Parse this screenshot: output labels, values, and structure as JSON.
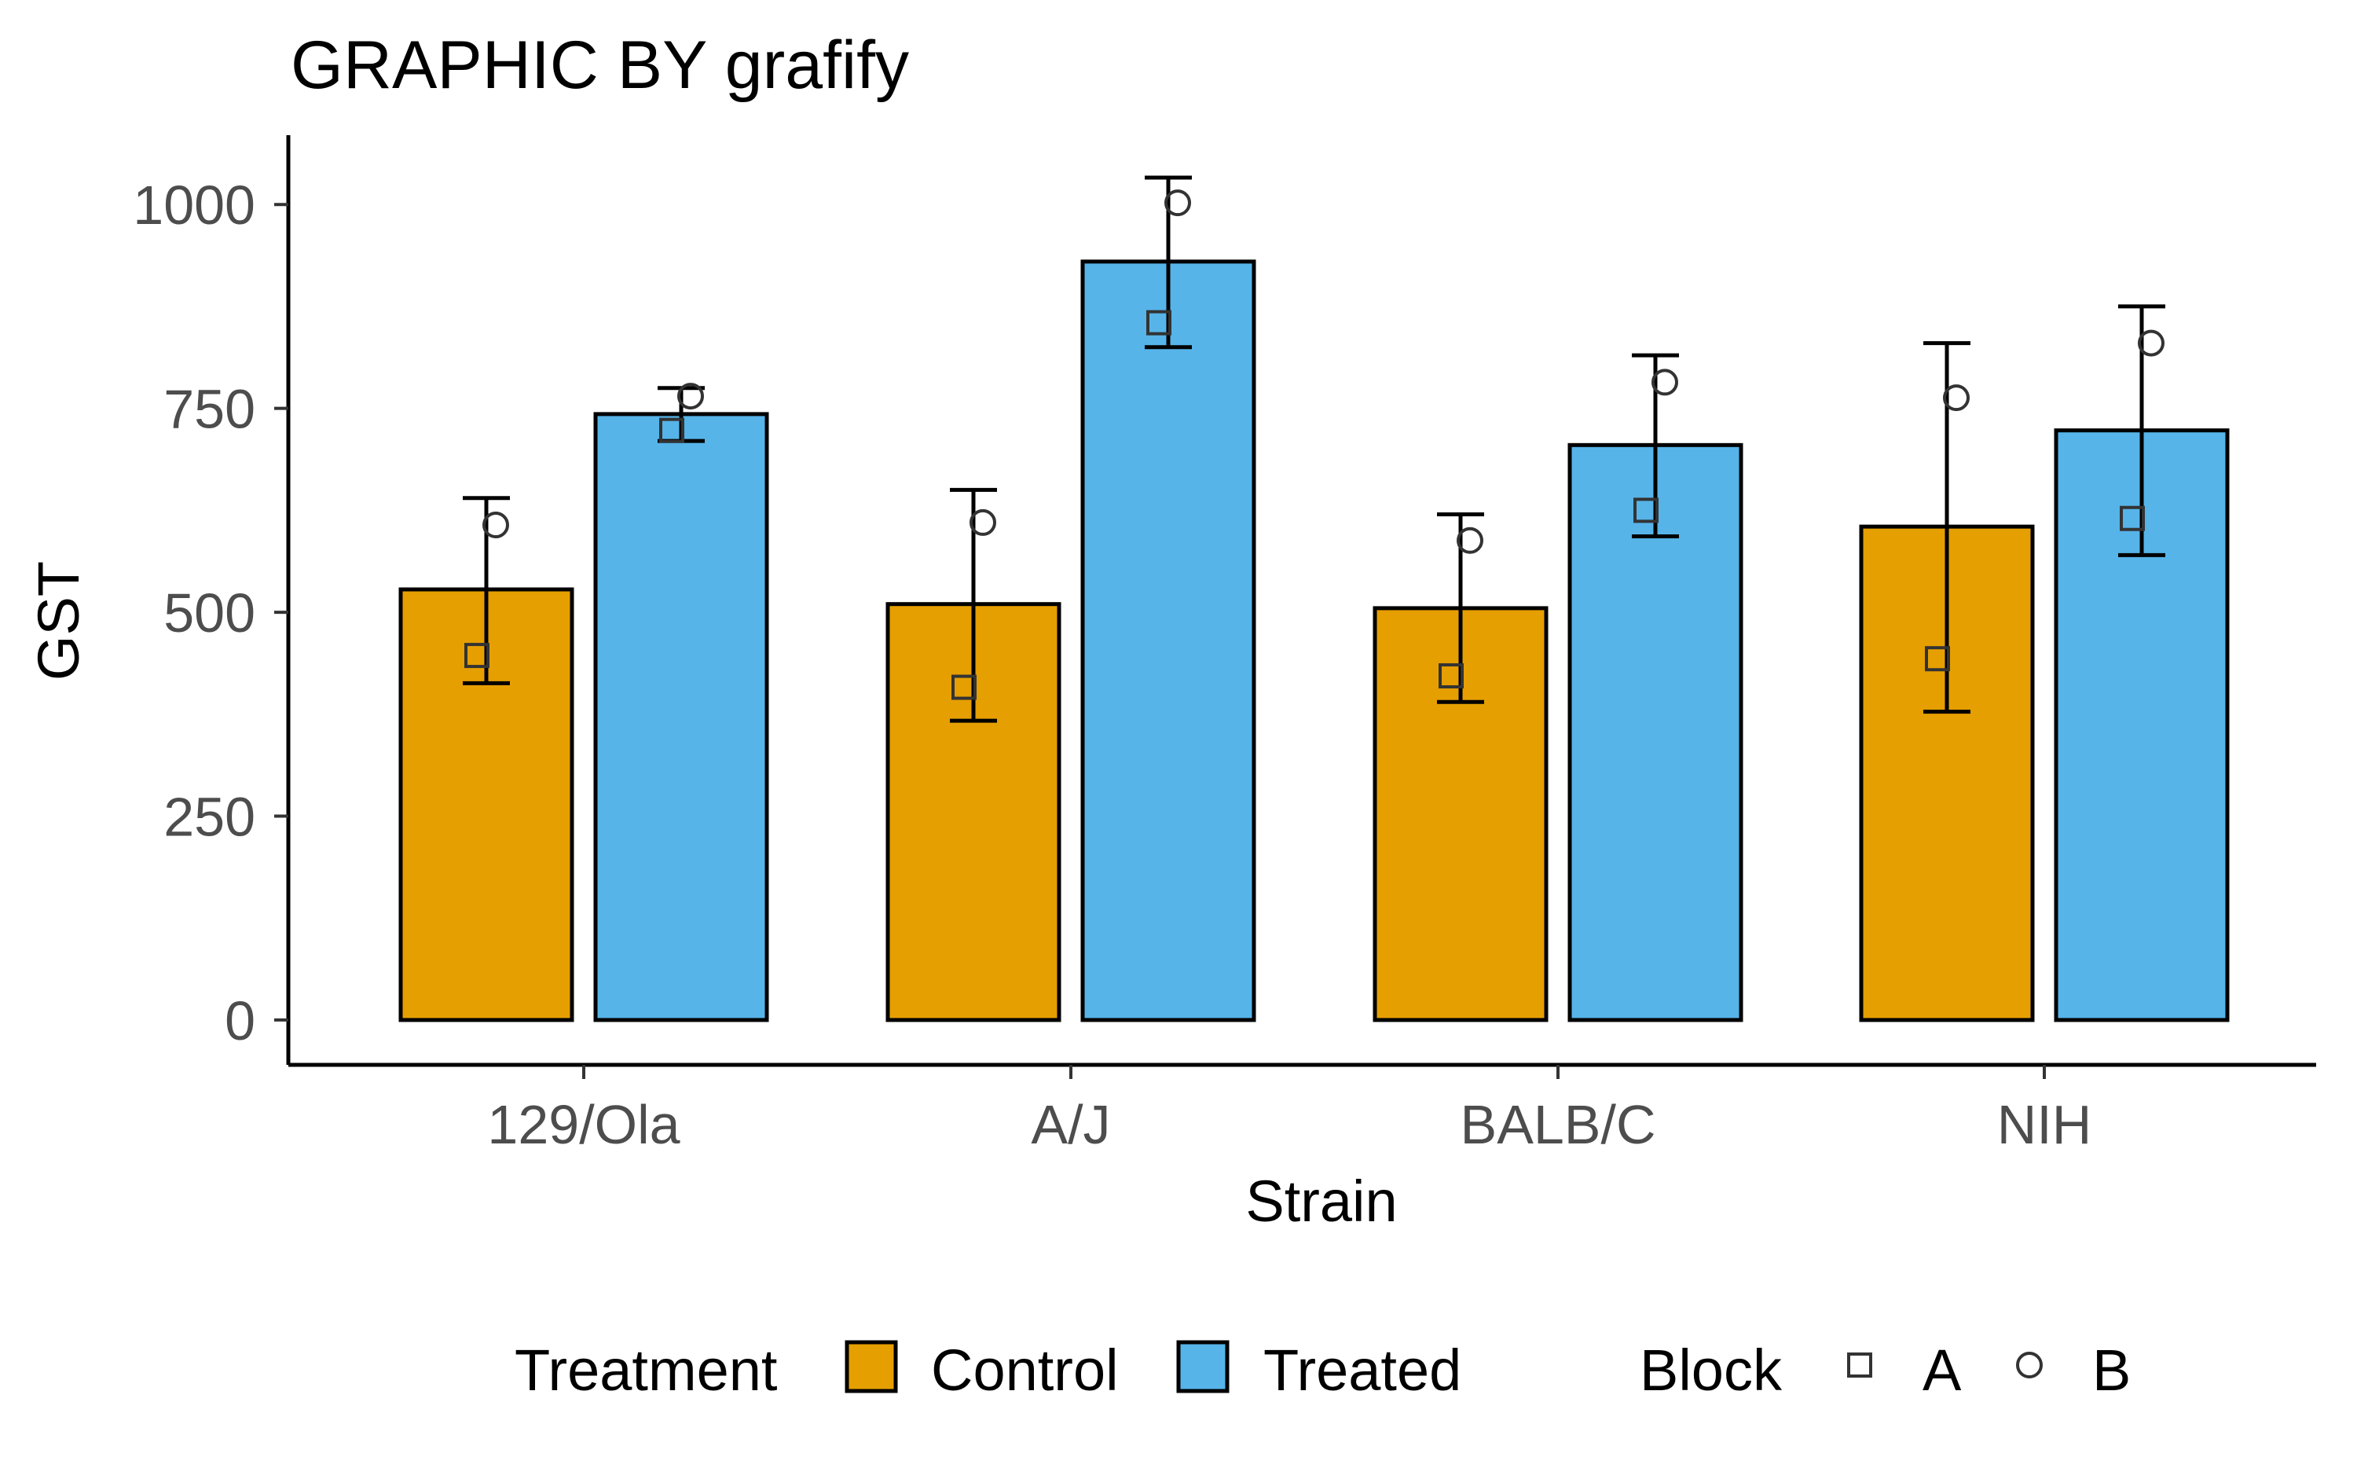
{
  "chart_data": {
    "type": "bar",
    "title": "GRAPHIC BY grafify",
    "xlabel": "Strain",
    "ylabel": "GST",
    "categories": [
      "129/Ola",
      "A/J",
      "BALB/C",
      "NIH"
    ],
    "ylim": [
      -55,
      1085
    ],
    "yticks": [
      0,
      250,
      500,
      750,
      1000
    ],
    "grid": false,
    "legend_position": "bottom",
    "series": [
      {
        "name": "Control",
        "color": "#E69F00",
        "values": [
          528,
          510,
          505,
          605
        ],
        "error_low": [
          413,
          367,
          390,
          378
        ],
        "error_high": [
          640,
          650,
          620,
          830
        ],
        "points": [
          {
            "block": "A",
            "values": [
              447,
              408,
              422,
              443
            ]
          },
          {
            "block": "B",
            "values": [
              607,
              610,
              588,
              763
            ]
          }
        ]
      },
      {
        "name": "Treated",
        "color": "#56B4E9",
        "values": [
          743,
          930,
          705,
          723
        ],
        "error_low": [
          710,
          825,
          593,
          570
        ],
        "error_high": [
          775,
          1033,
          815,
          875
        ],
        "points": [
          {
            "block": "A",
            "values": [
              723,
              855,
              625,
              615
            ]
          },
          {
            "block": "B",
            "values": [
              765,
              1002,
              782,
              830
            ]
          }
        ]
      }
    ]
  },
  "legend": {
    "treatment_title": "Treatment",
    "treatment_items": [
      {
        "label": "Control",
        "color": "#E69F00"
      },
      {
        "label": "Treated",
        "color": "#56B4E9"
      }
    ],
    "block_title": "Block",
    "block_items": [
      {
        "label": "A",
        "shape": "square-icon"
      },
      {
        "label": "B",
        "shape": "circle-icon"
      }
    ]
  }
}
